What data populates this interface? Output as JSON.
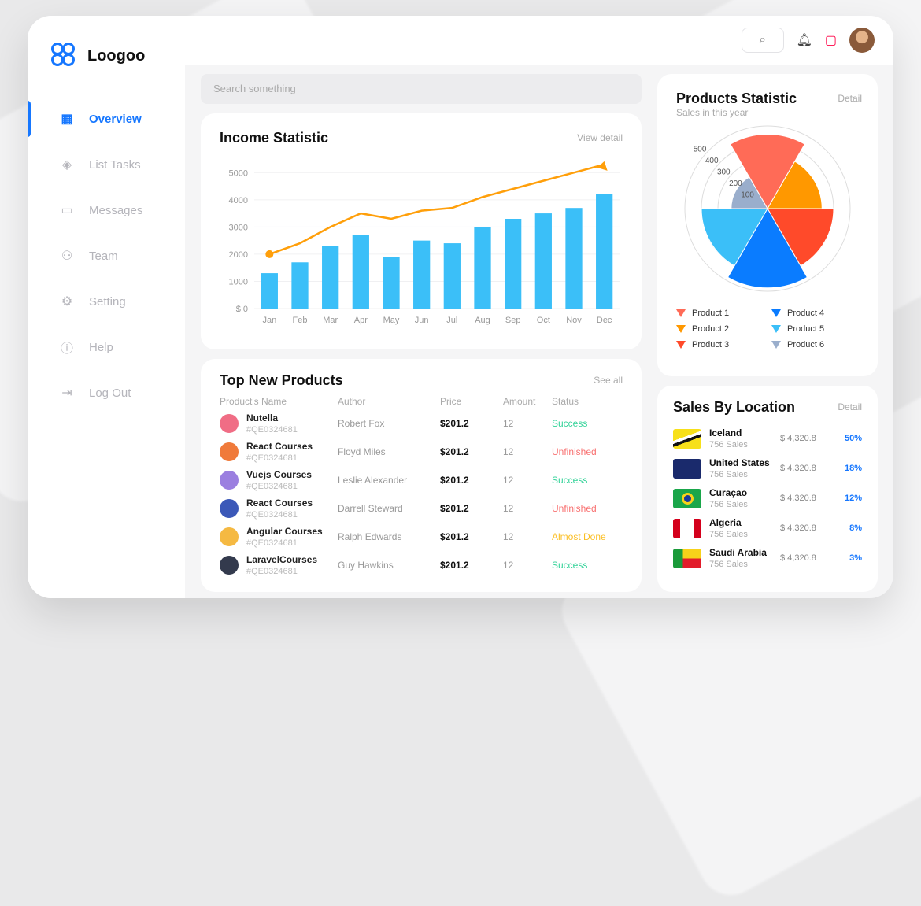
{
  "brand": {
    "name": "Loogoo"
  },
  "sidebar": {
    "items": [
      {
        "label": "Overview",
        "icon": "grid-icon",
        "active": true
      },
      {
        "label": "List Tasks",
        "icon": "layers-icon"
      },
      {
        "label": "Messages",
        "icon": "chat-icon"
      },
      {
        "label": "Team",
        "icon": "users-icon"
      },
      {
        "label": "Setting",
        "icon": "gear-icon"
      },
      {
        "label": "Help",
        "icon": "info-icon"
      },
      {
        "label": "Log Out",
        "icon": "logout-icon"
      }
    ]
  },
  "search": {
    "placeholder": "Search something"
  },
  "income": {
    "title": "Income Statistic",
    "link": "View detail"
  },
  "chart_data": [
    {
      "type": "bar",
      "title": "Income Statistic",
      "categories": [
        "Jan",
        "Feb",
        "Mar",
        "Apr",
        "May",
        "Jun",
        "Jul",
        "Aug",
        "Sep",
        "Oct",
        "Nov",
        "Dec"
      ],
      "series": [
        {
          "type": "bar",
          "values": [
            1300,
            1700,
            2300,
            2700,
            1900,
            2500,
            2400,
            3000,
            3300,
            3500,
            3700,
            4200
          ]
        },
        {
          "type": "line",
          "values": [
            2000,
            2400,
            3000,
            3500,
            3300,
            3600,
            3700,
            4100,
            4400,
            4700,
            5000,
            5300
          ]
        }
      ],
      "yticks": [
        "$ 0",
        "1000",
        "2000",
        "3000",
        "4000",
        "5000"
      ],
      "ylim": [
        0,
        5500
      ],
      "grid": true,
      "colors": {
        "bar": "#3bbff8",
        "line": "#ff9f0a"
      }
    },
    {
      "type": "polar",
      "title": "Products Statistic",
      "subtitle": "Sales in this year",
      "categories": [
        "Product 1",
        "Product 2",
        "Product 3",
        "Product 4",
        "Product 5",
        "Product 6"
      ],
      "values": [
        450,
        330,
        400,
        480,
        400,
        220
      ],
      "rticks": [
        "100",
        "200",
        "300",
        "400",
        "500"
      ],
      "rlim": [
        0,
        500
      ],
      "colors": [
        "#ff6b57",
        "#ff9800",
        "#ff4a2a",
        "#0a7cff",
        "#3bbff8",
        "#9aaecc"
      ]
    }
  ],
  "products_stat": {
    "title": "Products Statistic",
    "subtitle": "Sales in this year",
    "link": "Detail"
  },
  "top_products": {
    "title": "Top New Products",
    "link": "See all",
    "headers": [
      "Product's Name",
      "Author",
      "Price",
      "Amount",
      "Status"
    ],
    "rows": [
      {
        "name": "Nutella",
        "id": "#QE0324681",
        "author": "Robert Fox",
        "price": "$201.2",
        "amount": "12",
        "status": "Success",
        "color": "#f06d85"
      },
      {
        "name": "React Courses",
        "id": "#QE0324681",
        "author": "Floyd Miles",
        "price": "$201.2",
        "amount": "12",
        "status": "Unfinished",
        "color": "#f07a3a"
      },
      {
        "name": "Vuejs Courses",
        "id": "#QE0324681",
        "author": "Leslie Alexander",
        "price": "$201.2",
        "amount": "12",
        "status": "Success",
        "color": "#9b7fe0"
      },
      {
        "name": "React Courses",
        "id": "#QE0324681",
        "author": "Darrell Steward",
        "price": "$201.2",
        "amount": "12",
        "status": "Unfinished",
        "color": "#3b58b8"
      },
      {
        "name": "Angular Courses",
        "id": "#QE0324681",
        "author": "Ralph Edwards",
        "price": "$201.2",
        "amount": "12",
        "status": "Almost Done",
        "color": "#f5b942"
      },
      {
        "name": "LaravelCourses",
        "id": "#QE0324681",
        "author": "Guy Hawkins",
        "price": "$201.2",
        "amount": "12",
        "status": "Success",
        "color": "#333a4d"
      }
    ]
  },
  "status_colors": {
    "Success": "#34d399",
    "Unfinished": "#f87171",
    "Almost Done": "#fbbf24"
  },
  "sales": {
    "title": "Sales By Location",
    "link": "Detail",
    "rows": [
      {
        "country": "Iceland",
        "sales": "756 Sales",
        "amount": "$ 4,320.8",
        "pct": "50%"
      },
      {
        "country": "United States",
        "sales": "756 Sales",
        "amount": "$ 4,320.8",
        "pct": "18%"
      },
      {
        "country": "Curaçao",
        "sales": "756 Sales",
        "amount": "$ 4,320.8",
        "pct": "12%"
      },
      {
        "country": "Algeria",
        "sales": "756 Sales",
        "amount": "$ 4,320.8",
        "pct": "8%"
      },
      {
        "country": "Saudi Arabia",
        "sales": "756 Sales",
        "amount": "$ 4,320.8",
        "pct": "3%"
      }
    ]
  }
}
